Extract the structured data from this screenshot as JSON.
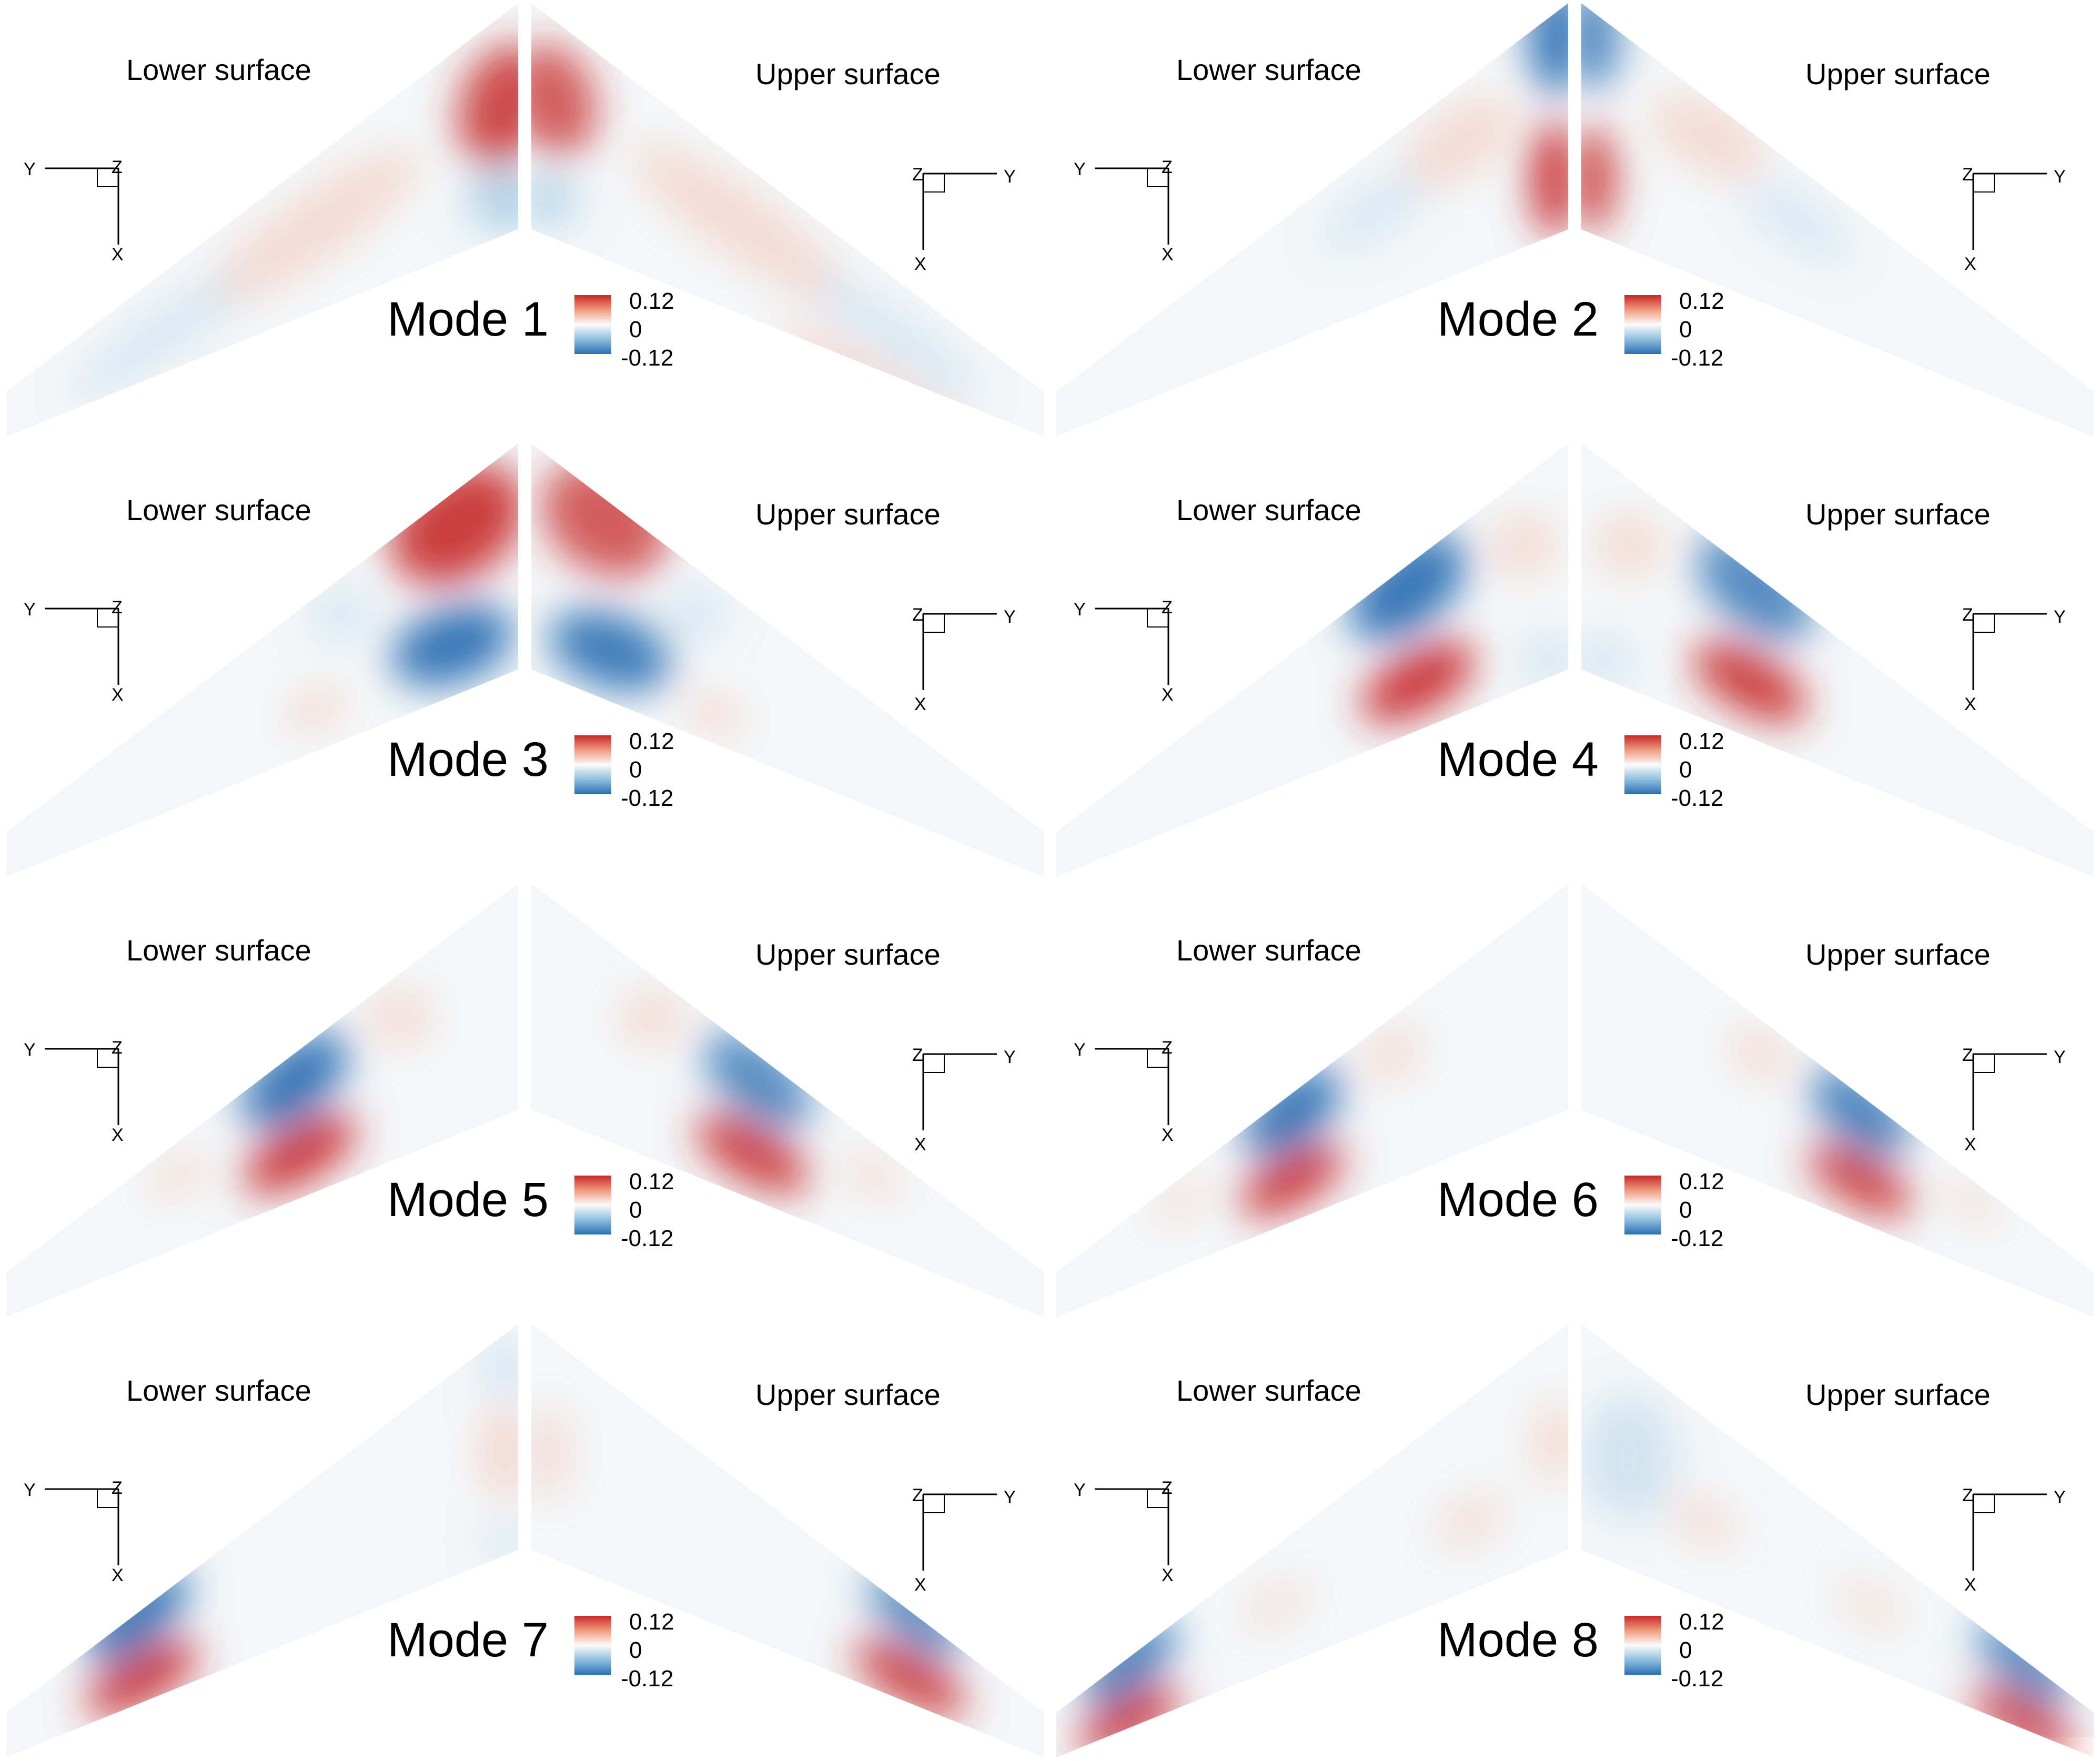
{
  "colorbar": {
    "max_label": "0.12",
    "zero_label": "0",
    "min_label": "-0.12",
    "max_color": "#c7282a",
    "min_color": "#2a6fb3",
    "mid_color": "#fbfbfb"
  },
  "labels": {
    "lower": "Lower surface",
    "upper": "Upper surface"
  },
  "axis_letters": {
    "y": "Y",
    "z": "Z",
    "x": "X"
  },
  "modes": [
    {
      "title": "Mode 1"
    },
    {
      "title": "Mode 2"
    },
    {
      "title": "Mode 3"
    },
    {
      "title": "Mode 4"
    },
    {
      "title": "Mode 5"
    },
    {
      "title": "Mode 6"
    },
    {
      "title": "Mode 7"
    },
    {
      "title": "Mode 8"
    }
  ]
}
